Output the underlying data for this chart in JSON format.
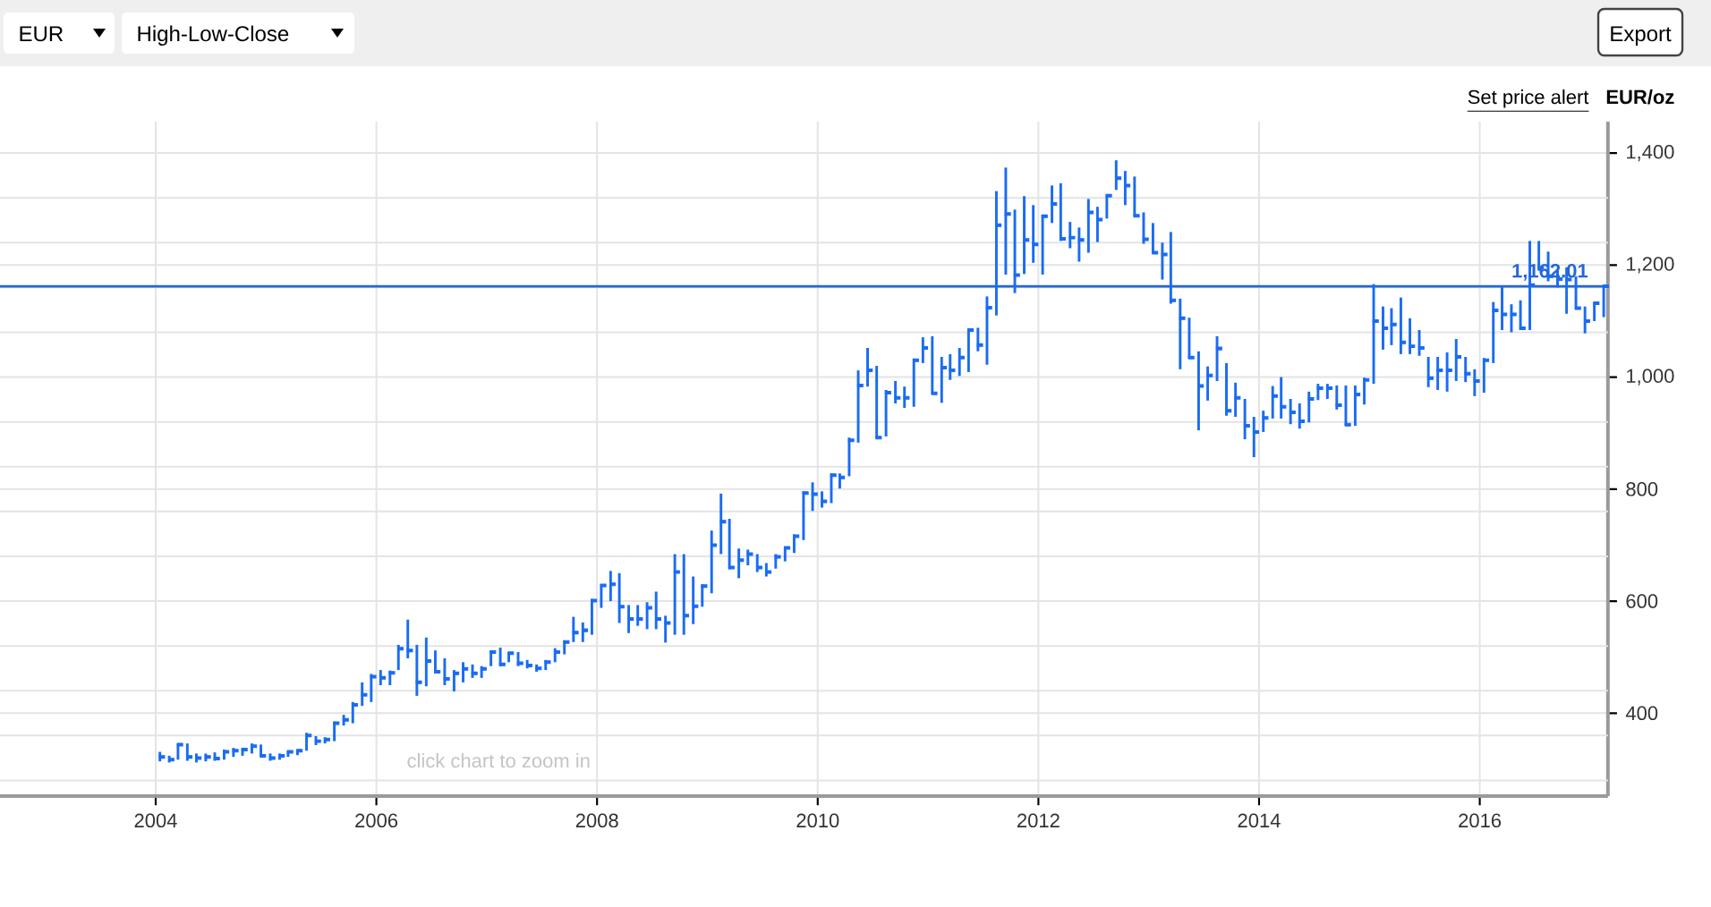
{
  "chart_data": {
    "type": "scatter",
    "x": [
      "2004-01-15",
      "2004-02-15",
      "2004-03-15",
      "2004-04-15",
      "2004-05-15",
      "2004-06-15",
      "2004-07-15",
      "2004-08-15",
      "2004-09-15",
      "2004-10-15",
      "2004-11-15",
      "2004-12-15",
      "2005-01-15",
      "2005-02-15",
      "2005-03-15",
      "2005-04-15",
      "2005-05-15",
      "2005-06-15",
      "2005-07-15",
      "2005-08-15",
      "2005-09-15",
      "2005-10-15",
      "2005-11-15",
      "2005-12-15",
      "2006-01-15",
      "2006-02-15",
      "2006-03-15",
      "2006-04-15",
      "2006-05-15",
      "2006-06-15",
      "2006-07-15",
      "2006-08-15",
      "2006-09-15",
      "2006-10-15",
      "2006-11-15",
      "2006-12-15",
      "2007-01-15",
      "2007-02-15",
      "2007-03-15",
      "2007-04-15",
      "2007-05-15",
      "2007-06-15",
      "2007-07-15",
      "2007-08-15",
      "2007-09-15",
      "2007-10-15",
      "2007-11-15",
      "2007-12-15",
      "2008-01-15",
      "2008-02-15",
      "2008-03-15",
      "2008-04-15",
      "2008-05-15",
      "2008-06-15",
      "2008-07-15",
      "2008-08-15",
      "2008-09-15",
      "2008-10-15",
      "2008-11-15",
      "2008-12-15",
      "2009-01-15",
      "2009-02-15",
      "2009-03-15",
      "2009-04-15",
      "2009-05-15",
      "2009-06-15",
      "2009-07-15",
      "2009-08-15",
      "2009-09-15",
      "2009-10-15",
      "2009-11-15",
      "2009-12-15",
      "2010-01-15",
      "2010-02-15",
      "2010-03-15",
      "2010-04-15",
      "2010-05-15",
      "2010-06-15",
      "2010-07-15",
      "2010-08-15",
      "2010-09-15",
      "2010-10-15",
      "2010-11-15",
      "2010-12-15",
      "2011-01-15",
      "2011-02-15",
      "2011-03-15",
      "2011-04-15",
      "2011-05-15",
      "2011-06-15",
      "2011-07-15",
      "2011-08-15",
      "2011-09-15",
      "2011-10-15",
      "2011-11-15",
      "2011-12-15",
      "2012-01-15",
      "2012-02-15",
      "2012-03-15",
      "2012-04-15",
      "2012-05-15",
      "2012-06-15",
      "2012-07-15",
      "2012-08-15",
      "2012-09-15",
      "2012-10-15",
      "2012-11-15",
      "2012-12-15",
      "2013-01-15",
      "2013-02-15",
      "2013-03-15",
      "2013-04-15",
      "2013-05-15",
      "2013-06-15",
      "2013-07-15",
      "2013-08-15",
      "2013-09-15",
      "2013-10-15",
      "2013-11-15",
      "2013-12-15",
      "2014-01-15",
      "2014-02-15",
      "2014-03-15",
      "2014-04-15",
      "2014-05-15",
      "2014-06-15",
      "2014-07-15",
      "2014-08-15",
      "2014-09-15",
      "2014-10-15",
      "2014-11-15",
      "2014-12-15",
      "2015-01-15",
      "2015-02-15",
      "2015-03-15",
      "2015-04-15",
      "2015-05-15",
      "2015-06-15",
      "2015-07-15",
      "2015-08-15",
      "2015-09-15",
      "2015-10-15",
      "2015-11-15",
      "2015-12-15",
      "2016-01-15",
      "2016-02-15",
      "2016-03-15",
      "2016-04-15",
      "2016-05-15",
      "2016-06-15",
      "2016-07-15",
      "2016-08-15",
      "2016-09-15",
      "2016-10-15",
      "2016-11-15",
      "2016-12-15",
      "2017-01-15",
      "2017-02-15"
    ],
    "values": [
      322,
      317,
      344,
      322,
      320,
      322,
      319,
      331,
      333,
      335,
      341,
      324,
      320,
      324,
      331,
      333,
      360,
      350,
      353,
      382,
      388,
      415,
      433,
      465,
      463,
      472,
      515,
      512,
      455,
      493,
      474,
      461,
      471,
      479,
      471,
      479,
      509,
      487,
      507,
      489,
      485,
      480,
      491,
      509,
      527,
      544,
      548,
      601,
      628,
      630,
      590,
      568,
      568,
      588,
      568,
      561,
      652,
      574,
      591,
      627,
      700,
      742,
      660,
      673,
      684,
      660,
      652,
      679,
      695,
      716,
      793,
      791,
      778,
      825,
      821,
      887,
      985,
      1012,
      892,
      972,
      963,
      963,
      1030,
      1052,
      971,
      1017,
      1012,
      1035,
      1084,
      1057,
      1124,
      1271,
      1291,
      1182,
      1245,
      1237,
      1287,
      1309,
      1247,
      1249,
      1245,
      1294,
      1281,
      1324,
      1355,
      1342,
      1288,
      1246,
      1222,
      1219,
      1137,
      1105,
      1035,
      984,
      1003,
      1051,
      940,
      963,
      913,
      902,
      927,
      966,
      947,
      937,
      921,
      961,
      980,
      980,
      950,
      915,
      969,
      995,
      1100,
      1087,
      1094,
      1062,
      1055,
      1052,
      998,
      1012,
      1012,
      1036,
      1006,
      993,
      1030,
      1119,
      1112,
      1112,
      1087,
      1164,
      1195,
      1180,
      1175,
      1174,
      1123,
      1100,
      1132,
      1162
    ],
    "errors": [
      [
        314,
        331
      ],
      [
        312,
        324
      ],
      [
        317,
        346
      ],
      [
        315,
        346
      ],
      [
        312,
        328
      ],
      [
        314,
        328
      ],
      [
        315,
        330
      ],
      [
        317,
        335
      ],
      [
        322,
        338
      ],
      [
        324,
        338
      ],
      [
        328,
        346
      ],
      [
        322,
        344
      ],
      [
        315,
        328
      ],
      [
        317,
        328
      ],
      [
        322,
        333
      ],
      [
        325,
        335
      ],
      [
        333,
        365
      ],
      [
        343,
        359
      ],
      [
        346,
        357
      ],
      [
        350,
        385
      ],
      [
        378,
        397
      ],
      [
        382,
        420
      ],
      [
        413,
        455
      ],
      [
        420,
        470
      ],
      [
        450,
        477
      ],
      [
        450,
        476
      ],
      [
        477,
        522
      ],
      [
        498,
        567
      ],
      [
        431,
        522
      ],
      [
        448,
        535
      ],
      [
        471,
        512
      ],
      [
        450,
        498
      ],
      [
        439,
        477
      ],
      [
        455,
        491
      ],
      [
        463,
        487
      ],
      [
        463,
        484
      ],
      [
        484,
        512
      ],
      [
        484,
        517
      ],
      [
        491,
        509
      ],
      [
        484,
        509
      ],
      [
        480,
        495
      ],
      [
        474,
        487
      ],
      [
        477,
        495
      ],
      [
        491,
        516
      ],
      [
        505,
        530
      ],
      [
        527,
        572
      ],
      [
        527,
        562
      ],
      [
        540,
        604
      ],
      [
        588,
        630
      ],
      [
        600,
        654
      ],
      [
        561,
        650
      ],
      [
        543,
        593
      ],
      [
        556,
        593
      ],
      [
        550,
        598
      ],
      [
        550,
        617
      ],
      [
        526,
        574
      ],
      [
        540,
        684
      ],
      [
        540,
        684
      ],
      [
        559,
        644
      ],
      [
        590,
        630
      ],
      [
        614,
        726
      ],
      [
        684,
        792
      ],
      [
        657,
        747
      ],
      [
        641,
        694
      ],
      [
        664,
        692
      ],
      [
        652,
        684
      ],
      [
        644,
        668
      ],
      [
        658,
        684
      ],
      [
        671,
        697
      ],
      [
        686,
        719
      ],
      [
        709,
        796
      ],
      [
        761,
        812
      ],
      [
        767,
        796
      ],
      [
        775,
        828
      ],
      [
        801,
        828
      ],
      [
        823,
        892
      ],
      [
        883,
        1012
      ],
      [
        983,
        1052
      ],
      [
        890,
        1020
      ],
      [
        894,
        977
      ],
      [
        953,
        993
      ],
      [
        945,
        983
      ],
      [
        947,
        1033
      ],
      [
        1025,
        1071
      ],
      [
        970,
        1073
      ],
      [
        954,
        1036
      ],
      [
        995,
        1041
      ],
      [
        1002,
        1052
      ],
      [
        1009,
        1086
      ],
      [
        1046,
        1088
      ],
      [
        1022,
        1144
      ],
      [
        1110,
        1332
      ],
      [
        1183,
        1374
      ],
      [
        1150,
        1299
      ],
      [
        1184,
        1323
      ],
      [
        1204,
        1307
      ],
      [
        1183,
        1290
      ],
      [
        1275,
        1342
      ],
      [
        1243,
        1346
      ],
      [
        1230,
        1277
      ],
      [
        1206,
        1267
      ],
      [
        1222,
        1318
      ],
      [
        1241,
        1304
      ],
      [
        1283,
        1326
      ],
      [
        1334,
        1387
      ],
      [
        1307,
        1368
      ],
      [
        1286,
        1358
      ],
      [
        1238,
        1294
      ],
      [
        1220,
        1275
      ],
      [
        1174,
        1240
      ],
      [
        1131,
        1259
      ],
      [
        1014,
        1140
      ],
      [
        1033,
        1106
      ],
      [
        905,
        1046
      ],
      [
        958,
        1019
      ],
      [
        993,
        1073
      ],
      [
        931,
        1025
      ],
      [
        929,
        990
      ],
      [
        889,
        961
      ],
      [
        857,
        929
      ],
      [
        902,
        940
      ],
      [
        926,
        984
      ],
      [
        926,
        1000
      ],
      [
        916,
        961
      ],
      [
        908,
        953
      ],
      [
        919,
        974
      ],
      [
        959,
        988
      ],
      [
        961,
        988
      ],
      [
        942,
        985
      ],
      [
        913,
        985
      ],
      [
        913,
        985
      ],
      [
        951,
        999
      ],
      [
        988,
        1166
      ],
      [
        1049,
        1126
      ],
      [
        1057,
        1123
      ],
      [
        1041,
        1142
      ],
      [
        1041,
        1105
      ],
      [
        1038,
        1084
      ],
      [
        982,
        1036
      ],
      [
        977,
        1036
      ],
      [
        974,
        1044
      ],
      [
        993,
        1068
      ],
      [
        991,
        1036
      ],
      [
        966,
        1014
      ],
      [
        972,
        1034
      ],
      [
        1025,
        1134
      ],
      [
        1084,
        1161
      ],
      [
        1080,
        1130
      ],
      [
        1084,
        1137
      ],
      [
        1084,
        1243
      ],
      [
        1190,
        1243
      ],
      [
        1171,
        1224
      ],
      [
        1160,
        1190
      ],
      [
        1113,
        1196
      ],
      [
        1121,
        1180
      ],
      [
        1078,
        1126
      ],
      [
        1100,
        1134
      ],
      [
        1107,
        1164
      ]
    ],
    "color": "#1a6cf2",
    "marker": "square",
    "xlim": [
      "2002-08-04",
      "2017-03-01"
    ],
    "xticks": [
      "2004",
      "2006",
      "2008",
      "2010",
      "2012",
      "2014",
      "2016"
    ],
    "ylim": [
      252,
      1456
    ],
    "yticks": [
      {
        "value": 280,
        "label": null
      },
      {
        "value": 360,
        "label": null
      },
      {
        "value": 400,
        "label": "400"
      },
      {
        "value": 440,
        "label": null
      },
      {
        "value": 520,
        "label": null
      },
      {
        "value": 600,
        "label": "600"
      },
      {
        "value": 680,
        "label": null
      },
      {
        "value": 760,
        "label": null
      },
      {
        "value": 800,
        "label": "800"
      },
      {
        "value": 840,
        "label": null
      },
      {
        "value": 920,
        "label": null
      },
      {
        "value": 1000,
        "label": "1,000"
      },
      {
        "value": 1080,
        "label": null
      },
      {
        "value": 1160,
        "label": null
      },
      {
        "value": 1200,
        "label": "1,200"
      },
      {
        "value": 1240,
        "label": null
      },
      {
        "value": 1320,
        "label": null
      },
      {
        "value": 1400,
        "label": "1,400"
      }
    ],
    "grid": true,
    "ylabel": "EUR/oz",
    "ref_lines": [
      {
        "axis": "y",
        "value": 1162.01,
        "label": "1,162.01",
        "color": "#2566d6"
      }
    ],
    "annotations": [
      "EUR",
      "High-Low-Close",
      "Export",
      "Set price alert",
      "click chart to zoom in"
    ]
  }
}
